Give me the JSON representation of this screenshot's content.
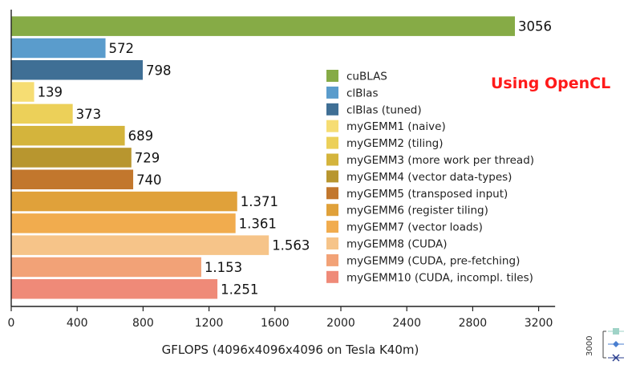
{
  "chart_data": {
    "type": "bar",
    "orientation": "horizontal",
    "categories": [
      "cuBLAS",
      "clBlas",
      "clBlas (tuned)",
      "myGEMM1 (naive)",
      "myGEMM2 (tiling)",
      "myGEMM3 (more work per thread)",
      "myGEMM4 (vector data-types)",
      "myGEMM5 (transposed input)",
      "myGEMM6 (register tiling)",
      "myGEMM7 (vector loads)",
      "myGEMM8 (CUDA)",
      "myGEMM9 (CUDA, pre-fetching)",
      "myGEMM10 (CUDA, incompl. tiles)"
    ],
    "values": [
      3056,
      572,
      798,
      139,
      373,
      689,
      729,
      740,
      1371,
      1361,
      1563,
      1153,
      1251
    ],
    "value_labels": [
      "3056",
      "572",
      "798",
      "139",
      "373",
      "689",
      "729",
      "740",
      "1.371",
      "1.361",
      "1.563",
      "1.153",
      "1.251"
    ],
    "colors": [
      "#86ab46",
      "#5a9ccc",
      "#3f6f95",
      "#f6dd73",
      "#ecd059",
      "#d4b43c",
      "#b8962f",
      "#c2772d",
      "#e0a13a",
      "#f1ac4e",
      "#f6c489",
      "#f2a277",
      "#ef8a78"
    ],
    "xlabel": "GFLOPS (4096x4096x4096 on Tesla K40m)",
    "ylabel": "",
    "xlim": [
      0,
      3300
    ],
    "xticks": [
      0,
      400,
      800,
      1200,
      1600,
      2000,
      2400,
      2800,
      3200
    ],
    "xtick_labels": [
      "0",
      "400",
      "800",
      "1200",
      "1600",
      "2000",
      "2400",
      "2800",
      "3200"
    ],
    "legend_position": "right",
    "grid": false,
    "annotation": "Using OpenCL"
  },
  "mini_widget": {
    "label": "3000",
    "icons": [
      "square-marker-icon",
      "diamond-marker-icon",
      "cross-marker-icon"
    ],
    "colors": [
      "#9fd3c7",
      "#4a7fd0",
      "#2b3f8f"
    ]
  }
}
